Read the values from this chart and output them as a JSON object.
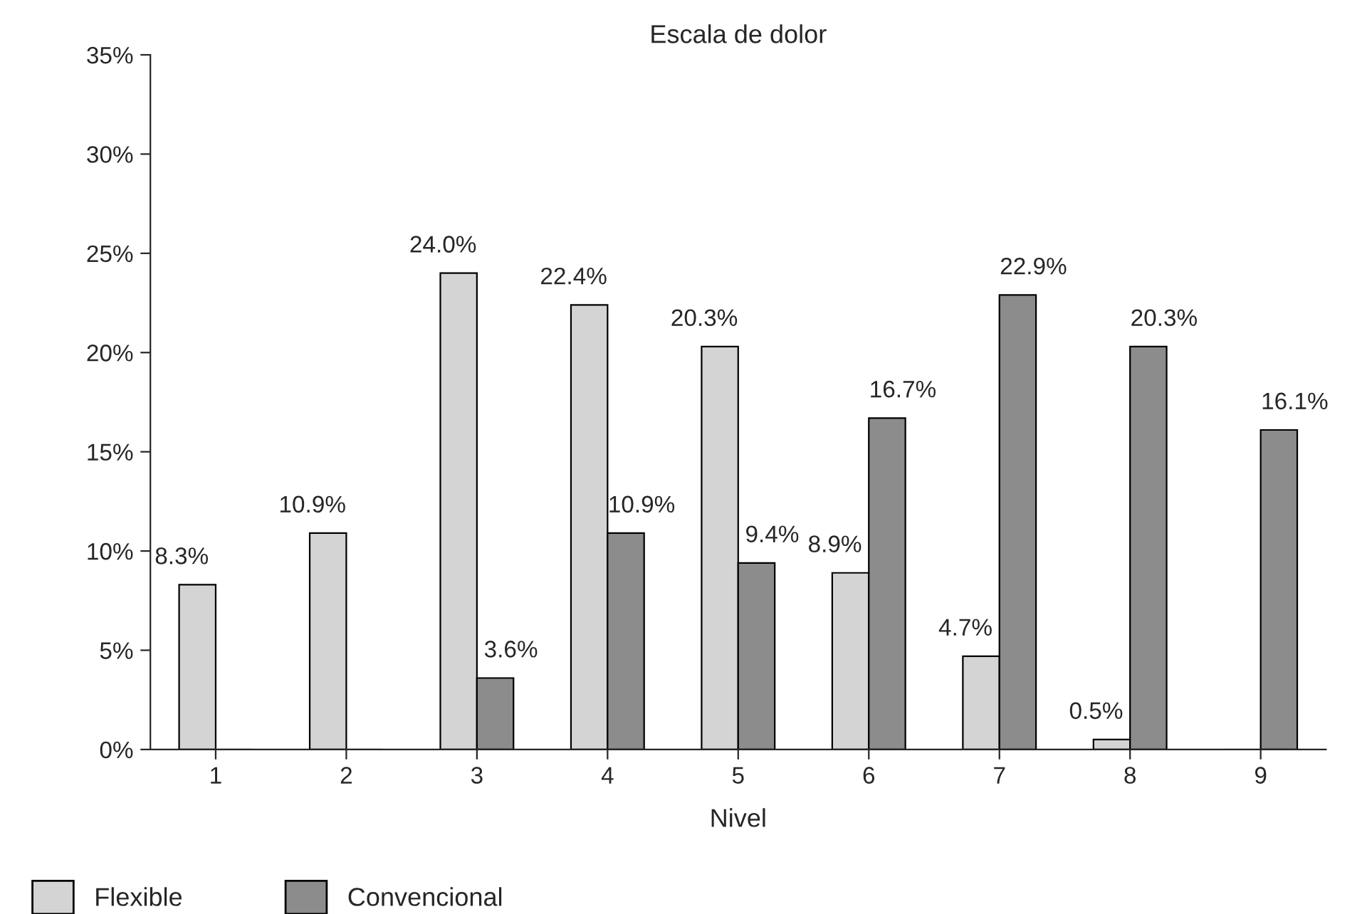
{
  "chart_data": {
    "type": "bar",
    "title": "Escala de dolor",
    "xlabel": "Nivel",
    "categories": [
      "1",
      "2",
      "3",
      "4",
      "5",
      "6",
      "7",
      "8",
      "9"
    ],
    "series": [
      {
        "name": "Flexible",
        "color": "#d4d4d4",
        "values": [
          8.3,
          10.9,
          24.0,
          22.4,
          20.3,
          8.9,
          4.7,
          0.5,
          0
        ],
        "value_labels": [
          "8.3%",
          "10.9%",
          "24.0%",
          "22.4%",
          "20.3%",
          "8.9%",
          "4.7%",
          "0.5%",
          null
        ]
      },
      {
        "name": "Convencional",
        "color": "#8c8c8c",
        "values": [
          0,
          0,
          3.6,
          10.9,
          9.4,
          16.7,
          22.9,
          20.3,
          16.1
        ],
        "value_labels": [
          null,
          null,
          "3.6%",
          "10.9%",
          "9.4%",
          "16.7%",
          "22.9%",
          "20.3%",
          "16.1%"
        ]
      }
    ],
    "ylim": [
      0,
      35
    ],
    "yticks": [
      {
        "value": 0,
        "label": "0%"
      },
      {
        "value": 5,
        "label": "5%"
      },
      {
        "value": 10,
        "label": "10%"
      },
      {
        "value": 15,
        "label": "15%"
      },
      {
        "value": 20,
        "label": "20%"
      },
      {
        "value": 25,
        "label": "25%"
      },
      {
        "value": 30,
        "label": "30%"
      },
      {
        "value": 35,
        "label": "35%"
      }
    ],
    "grid": false,
    "legend": "bottom left"
  }
}
